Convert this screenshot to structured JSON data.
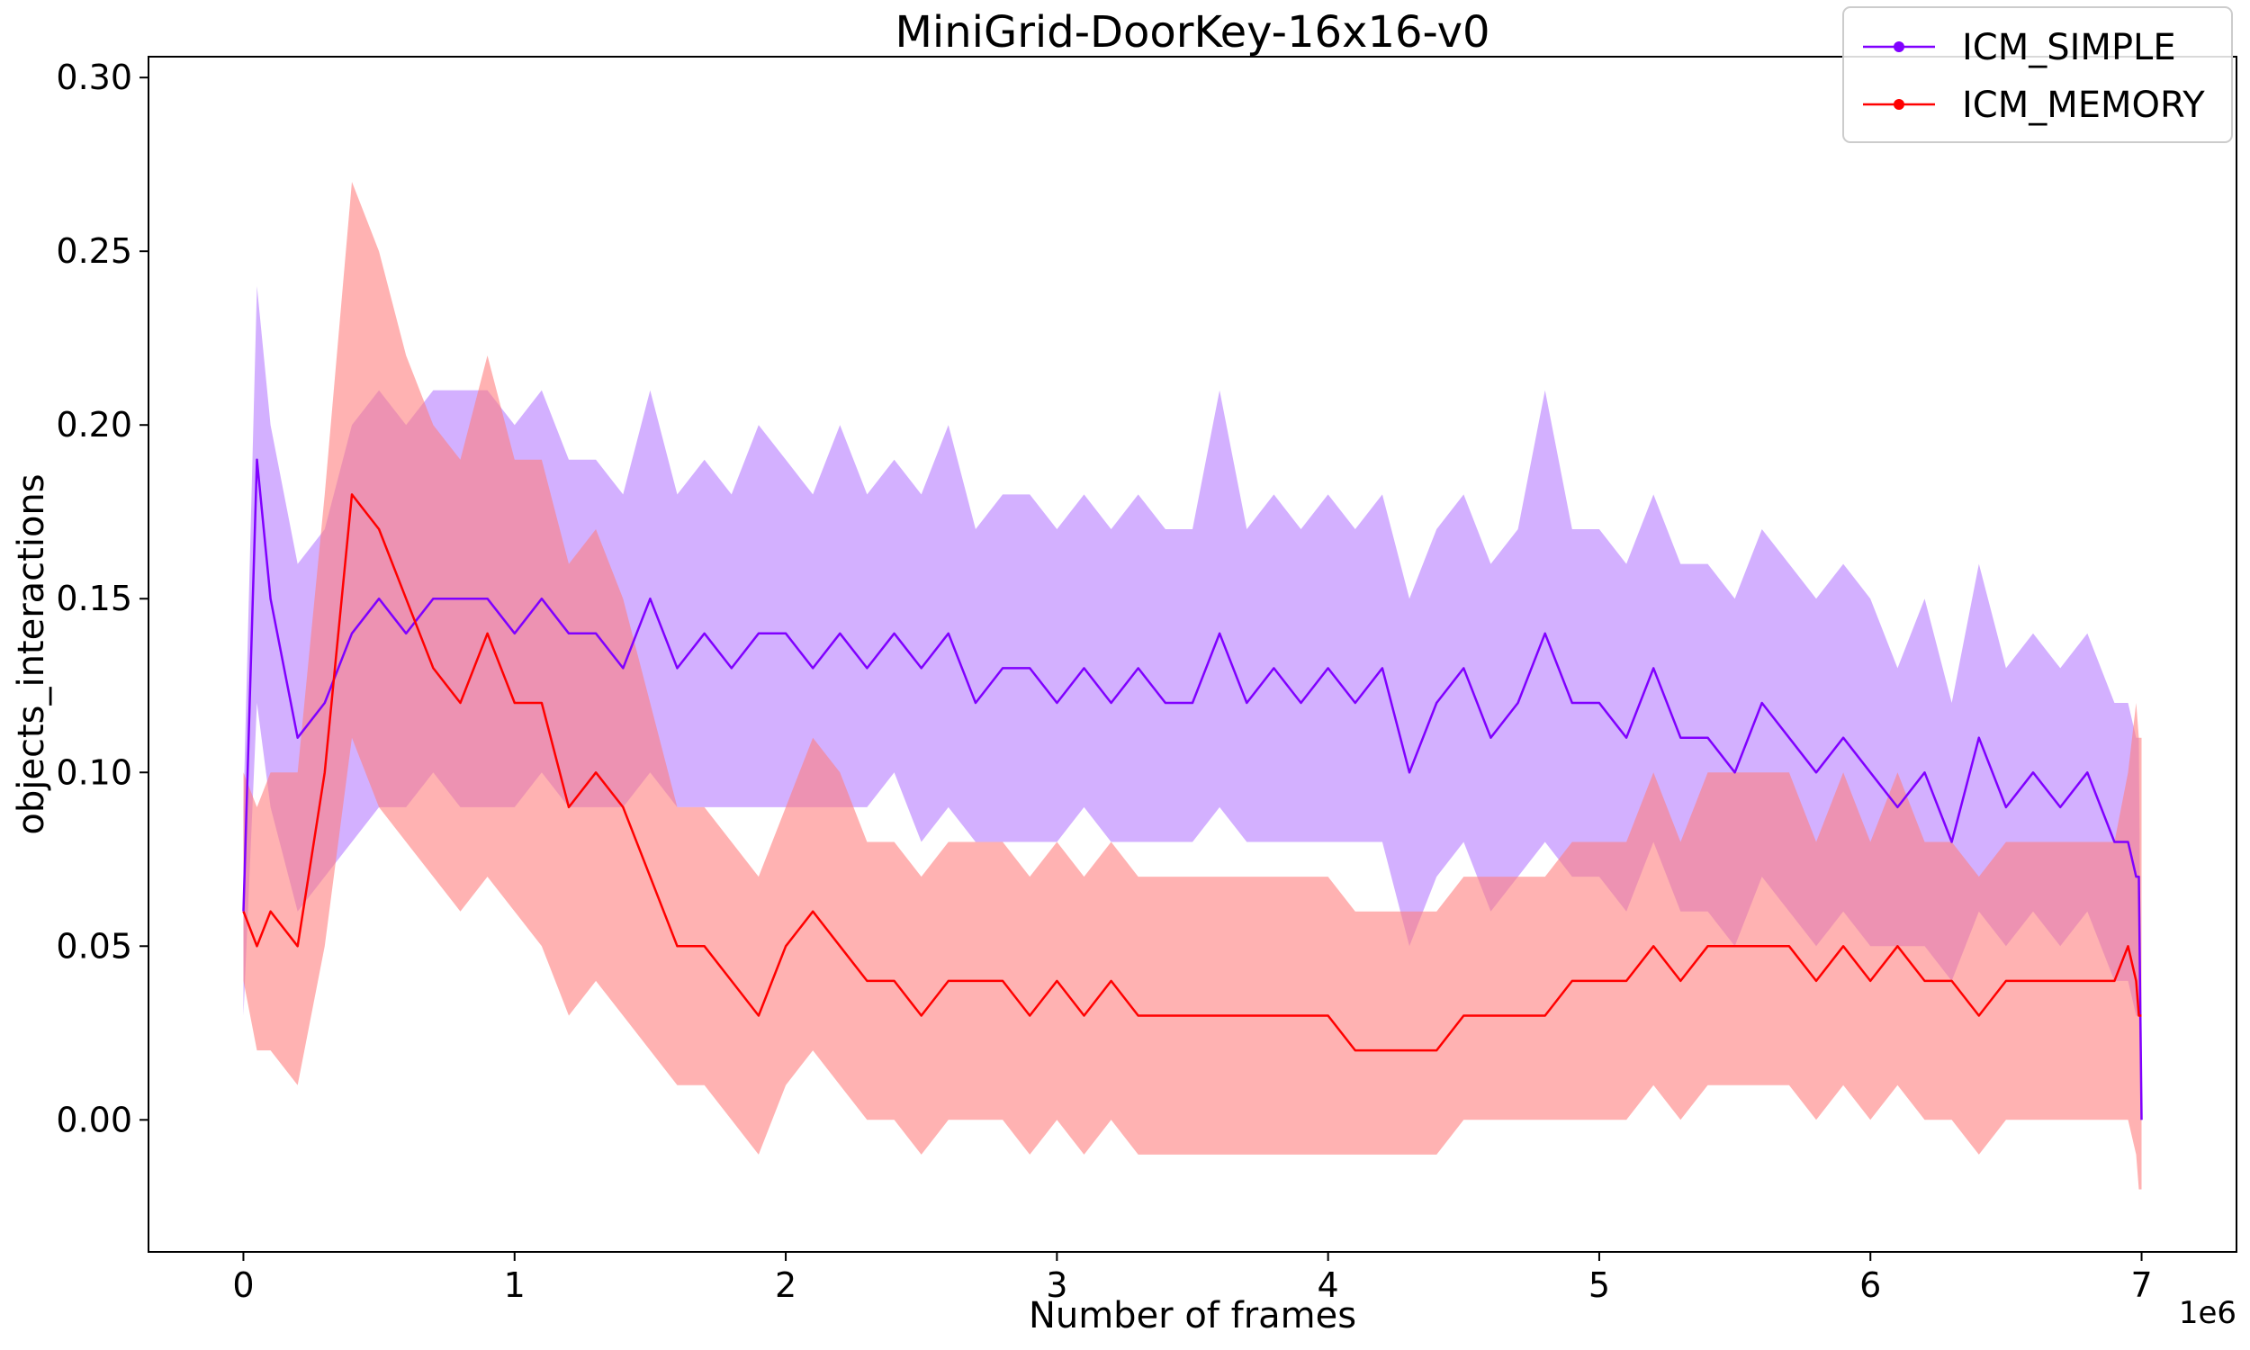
{
  "chart_data": {
    "type": "line",
    "title": "MiniGrid-DoorKey-16x16-v0",
    "xlabel": "Number of frames",
    "ylabel": "objects_interactions",
    "x_offset_label": "1e6",
    "xlim": [
      -0.35,
      7.35
    ],
    "ylim": [
      -0.038,
      0.306
    ],
    "x_ticks": [
      0,
      1,
      2,
      3,
      4,
      5,
      6,
      7
    ],
    "x_tick_labels": [
      "0",
      "1",
      "2",
      "3",
      "4",
      "5",
      "6",
      "7"
    ],
    "y_ticks": [
      0.0,
      0.05,
      0.1,
      0.15,
      0.2,
      0.25,
      0.3
    ],
    "y_tick_labels": [
      "0.00",
      "0.05",
      "0.10",
      "0.15",
      "0.20",
      "0.25",
      "0.30"
    ],
    "grid": false,
    "legend_position": "top-right",
    "x": [
      0.0,
      0.05,
      0.1,
      0.2,
      0.3,
      0.4,
      0.5,
      0.6,
      0.7,
      0.8,
      0.9,
      1.0,
      1.1,
      1.2,
      1.3,
      1.4,
      1.5,
      1.6,
      1.7,
      1.8,
      1.9,
      2.0,
      2.1,
      2.2,
      2.3,
      2.4,
      2.5,
      2.6,
      2.7,
      2.8,
      2.9,
      3.0,
      3.1,
      3.2,
      3.3,
      3.4,
      3.5,
      3.6,
      3.7,
      3.8,
      3.9,
      4.0,
      4.1,
      4.2,
      4.3,
      4.4,
      4.5,
      4.6,
      4.7,
      4.8,
      4.9,
      5.0,
      5.1,
      5.2,
      5.3,
      5.4,
      5.5,
      5.6,
      5.7,
      5.8,
      5.9,
      6.0,
      6.1,
      6.2,
      6.3,
      6.4,
      6.5,
      6.6,
      6.7,
      6.8,
      6.9,
      6.95,
      6.98,
      6.99,
      7.0
    ],
    "series": [
      {
        "name": "ICM_SIMPLE",
        "color": "#8000ff",
        "band_color": "#b57cff",
        "values": [
          0.06,
          0.19,
          0.15,
          0.11,
          0.12,
          0.14,
          0.15,
          0.14,
          0.15,
          0.15,
          0.15,
          0.14,
          0.15,
          0.14,
          0.14,
          0.13,
          0.15,
          0.13,
          0.14,
          0.13,
          0.14,
          0.14,
          0.13,
          0.14,
          0.13,
          0.14,
          0.13,
          0.14,
          0.12,
          0.13,
          0.13,
          0.12,
          0.13,
          0.12,
          0.13,
          0.12,
          0.12,
          0.14,
          0.12,
          0.13,
          0.12,
          0.13,
          0.12,
          0.13,
          0.1,
          0.12,
          0.13,
          0.11,
          0.12,
          0.14,
          0.12,
          0.12,
          0.11,
          0.13,
          0.11,
          0.11,
          0.1,
          0.12,
          0.11,
          0.1,
          0.11,
          0.1,
          0.09,
          0.1,
          0.08,
          0.11,
          0.09,
          0.1,
          0.09,
          0.1,
          0.08,
          0.08,
          0.07,
          0.07,
          0.0
        ],
        "lower": [
          0.03,
          0.12,
          0.09,
          0.06,
          0.07,
          0.08,
          0.09,
          0.09,
          0.1,
          0.09,
          0.09,
          0.09,
          0.1,
          0.09,
          0.09,
          0.09,
          0.1,
          0.09,
          0.09,
          0.09,
          0.09,
          0.09,
          0.09,
          0.09,
          0.09,
          0.1,
          0.08,
          0.09,
          0.08,
          0.08,
          0.08,
          0.08,
          0.09,
          0.08,
          0.08,
          0.08,
          0.08,
          0.09,
          0.08,
          0.08,
          0.08,
          0.08,
          0.08,
          0.08,
          0.05,
          0.07,
          0.08,
          0.06,
          0.07,
          0.08,
          0.07,
          0.07,
          0.06,
          0.08,
          0.06,
          0.06,
          0.05,
          0.07,
          0.06,
          0.05,
          0.06,
          0.05,
          0.05,
          0.05,
          0.04,
          0.06,
          0.05,
          0.06,
          0.05,
          0.06,
          0.04,
          0.04,
          0.03,
          0.03,
          0.0
        ],
        "upper": [
          0.09,
          0.24,
          0.2,
          0.16,
          0.17,
          0.2,
          0.21,
          0.2,
          0.21,
          0.21,
          0.21,
          0.2,
          0.21,
          0.19,
          0.19,
          0.18,
          0.21,
          0.18,
          0.19,
          0.18,
          0.2,
          0.19,
          0.18,
          0.2,
          0.18,
          0.19,
          0.18,
          0.2,
          0.17,
          0.18,
          0.18,
          0.17,
          0.18,
          0.17,
          0.18,
          0.17,
          0.17,
          0.21,
          0.17,
          0.18,
          0.17,
          0.18,
          0.17,
          0.18,
          0.15,
          0.17,
          0.18,
          0.16,
          0.17,
          0.21,
          0.17,
          0.17,
          0.16,
          0.18,
          0.16,
          0.16,
          0.15,
          0.17,
          0.16,
          0.15,
          0.16,
          0.15,
          0.13,
          0.15,
          0.12,
          0.16,
          0.13,
          0.14,
          0.13,
          0.14,
          0.12,
          0.12,
          0.11,
          0.11,
          0.0
        ]
      },
      {
        "name": "ICM_MEMORY",
        "color": "#ff0000",
        "band_color": "#ff7f7f",
        "values": [
          0.06,
          0.05,
          0.06,
          0.05,
          0.1,
          0.18,
          0.17,
          0.15,
          0.13,
          0.12,
          0.14,
          0.12,
          0.12,
          0.09,
          0.1,
          0.09,
          0.07,
          0.05,
          0.05,
          0.04,
          0.03,
          0.05,
          0.06,
          0.05,
          0.04,
          0.04,
          0.03,
          0.04,
          0.04,
          0.04,
          0.03,
          0.04,
          0.03,
          0.04,
          0.03,
          0.03,
          0.03,
          0.03,
          0.03,
          0.03,
          0.03,
          0.03,
          0.02,
          0.02,
          0.02,
          0.02,
          0.03,
          0.03,
          0.03,
          0.03,
          0.04,
          0.04,
          0.04,
          0.05,
          0.04,
          0.05,
          0.05,
          0.05,
          0.05,
          0.04,
          0.05,
          0.04,
          0.05,
          0.04,
          0.04,
          0.03,
          0.04,
          0.04,
          0.04,
          0.04,
          0.04,
          0.05,
          0.04,
          0.03,
          0.03
        ],
        "lower": [
          0.04,
          0.02,
          0.02,
          0.01,
          0.05,
          0.11,
          0.09,
          0.08,
          0.07,
          0.06,
          0.07,
          0.06,
          0.05,
          0.03,
          0.04,
          0.03,
          0.02,
          0.01,
          0.01,
          0.0,
          -0.01,
          0.01,
          0.02,
          0.01,
          0.0,
          0.0,
          -0.01,
          0.0,
          0.0,
          0.0,
          -0.01,
          0.0,
          -0.01,
          0.0,
          -0.01,
          -0.01,
          -0.01,
          -0.01,
          -0.01,
          -0.01,
          -0.01,
          -0.01,
          -0.01,
          -0.01,
          -0.01,
          -0.01,
          0.0,
          0.0,
          0.0,
          0.0,
          0.0,
          0.0,
          0.0,
          0.01,
          0.0,
          0.01,
          0.01,
          0.01,
          0.01,
          0.0,
          0.01,
          0.0,
          0.01,
          0.0,
          0.0,
          -0.01,
          0.0,
          0.0,
          0.0,
          0.0,
          0.0,
          0.0,
          -0.01,
          -0.02,
          -0.02
        ],
        "upper": [
          0.1,
          0.09,
          0.1,
          0.1,
          0.18,
          0.27,
          0.25,
          0.22,
          0.2,
          0.19,
          0.22,
          0.19,
          0.19,
          0.16,
          0.17,
          0.15,
          0.12,
          0.09,
          0.09,
          0.08,
          0.07,
          0.09,
          0.11,
          0.1,
          0.08,
          0.08,
          0.07,
          0.08,
          0.08,
          0.08,
          0.07,
          0.08,
          0.07,
          0.08,
          0.07,
          0.07,
          0.07,
          0.07,
          0.07,
          0.07,
          0.07,
          0.07,
          0.06,
          0.06,
          0.06,
          0.06,
          0.07,
          0.07,
          0.07,
          0.07,
          0.08,
          0.08,
          0.08,
          0.1,
          0.08,
          0.1,
          0.1,
          0.1,
          0.1,
          0.08,
          0.1,
          0.08,
          0.1,
          0.08,
          0.08,
          0.07,
          0.08,
          0.08,
          0.08,
          0.08,
          0.08,
          0.1,
          0.12,
          0.11,
          0.11
        ]
      }
    ]
  }
}
